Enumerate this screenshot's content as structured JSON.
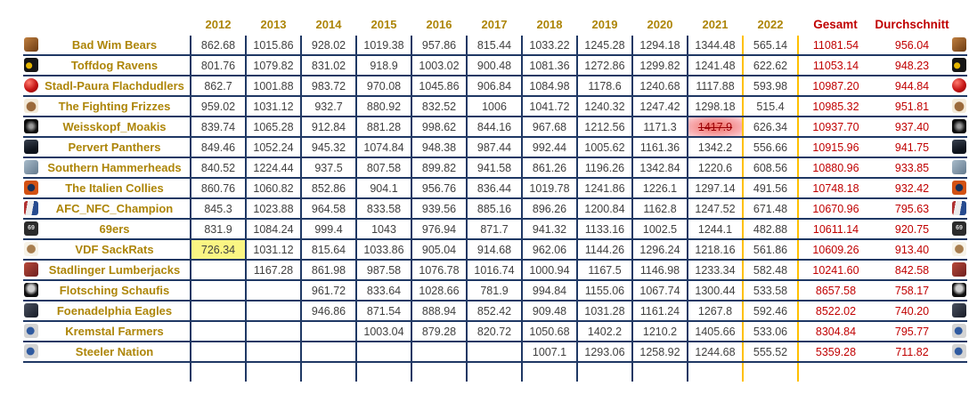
{
  "table": {
    "year_headers": [
      "2012",
      "2013",
      "2014",
      "2015",
      "2016",
      "2017",
      "2018",
      "2019",
      "2020",
      "2021",
      "2022"
    ],
    "summary_headers": {
      "total": "Gesamt",
      "average": "Durchschnitt"
    },
    "colors": {
      "header_year_text": "#AD8508",
      "team_name_text": "#AD8508",
      "value_text": "#404040",
      "summary_text": "#C00000",
      "grid_border": "#1F3864",
      "highlight_border_2022": "#FFC000",
      "min_cell_bg": "#FAF583",
      "max_cell_bg": "#EE6A60",
      "max_cell_text": "#9C0006"
    },
    "teams": [
      {
        "name": "Bad Wim Bears",
        "icon": "bear-logo-icon",
        "values": [
          "862.68",
          "1015.86",
          "928.02",
          "1019.38",
          "957.86",
          "815.44",
          "1033.22",
          "1245.28",
          "1294.18",
          "1344.48",
          "565.14"
        ],
        "gesamt": "11081.54",
        "durchschnitt": "956.04"
      },
      {
        "name": "Toffdog Ravens",
        "icon": "raven-logo-icon",
        "values": [
          "801.76",
          "1079.82",
          "831.02",
          "918.9",
          "1003.02",
          "900.48",
          "1081.36",
          "1272.86",
          "1299.82",
          "1241.48",
          "622.62"
        ],
        "gesamt": "11053.14",
        "durchschnitt": "948.23"
      },
      {
        "name": "Stadl-Paura Flachdudlers",
        "icon": "red-ball-logo-icon",
        "values": [
          "862.7",
          "1001.88",
          "983.72",
          "970.08",
          "1045.86",
          "906.84",
          "1084.98",
          "1178.6",
          "1240.68",
          "1117.88",
          "593.98"
        ],
        "gesamt": "10987.20",
        "durchschnitt": "944.84"
      },
      {
        "name": "The Fighting Frizzes",
        "icon": "frizzes-logo-icon",
        "values": [
          "959.02",
          "1031.12",
          "932.7",
          "880.92",
          "832.52",
          "1006",
          "1041.72",
          "1240.32",
          "1247.42",
          "1298.18",
          "515.4"
        ],
        "gesamt": "10985.32",
        "durchschnitt": "951.81"
      },
      {
        "name": "Weisskopf_Moakis",
        "icon": "moakis-logo-icon",
        "values": [
          "839.74",
          "1065.28",
          "912.84",
          "881.28",
          "998.62",
          "844.16",
          "967.68",
          "1212.56",
          "1171.3",
          "1417.9",
          "626.34"
        ],
        "gesamt": "10937.70",
        "durchschnitt": "937.40",
        "highlight": {
          "index": 9,
          "type": "max"
        }
      },
      {
        "name": "Pervert Panthers",
        "icon": "panthers-logo-icon",
        "values": [
          "849.46",
          "1052.24",
          "945.32",
          "1074.84",
          "948.38",
          "987.44",
          "992.44",
          "1005.62",
          "1161.36",
          "1342.2",
          "556.66"
        ],
        "gesamt": "10915.96",
        "durchschnitt": "941.75"
      },
      {
        "name": "Southern Hammerheads",
        "icon": "hammerhead-logo-icon",
        "values": [
          "840.52",
          "1224.44",
          "937.5",
          "807.58",
          "899.82",
          "941.58",
          "861.26",
          "1196.26",
          "1342.84",
          "1220.6",
          "608.56"
        ],
        "gesamt": "10880.96",
        "durchschnitt": "933.85"
      },
      {
        "name": "The Italien Collies",
        "icon": "collies-logo-icon",
        "values": [
          "860.76",
          "1060.82",
          "852.86",
          "904.1",
          "956.76",
          "836.44",
          "1019.78",
          "1241.86",
          "1226.1",
          "1297.14",
          "491.56"
        ],
        "gesamt": "10748.18",
        "durchschnitt": "932.42"
      },
      {
        "name": "AFC_NFC_Champion",
        "icon": "champion-flags-logo-icon",
        "values": [
          "845.3",
          "1023.88",
          "964.58",
          "833.58",
          "939.56",
          "885.16",
          "896.26",
          "1200.84",
          "1162.8",
          "1247.52",
          "671.48"
        ],
        "gesamt": "10670.96",
        "durchschnitt": "795.63"
      },
      {
        "name": "69ers",
        "icon": "sixtyniners-logo-icon",
        "values": [
          "831.9",
          "1084.24",
          "999.4",
          "1043",
          "976.94",
          "871.7",
          "941.32",
          "1133.16",
          "1002.5",
          "1244.1",
          "482.88"
        ],
        "gesamt": "10611.14",
        "durchschnitt": "920.75"
      },
      {
        "name": "VDF SackRats",
        "icon": "sackrats-logo-icon",
        "values": [
          "726.34",
          "1031.12",
          "815.64",
          "1033.86",
          "905.04",
          "914.68",
          "962.06",
          "1144.26",
          "1296.24",
          "1218.16",
          "561.86"
        ],
        "gesamt": "10609.26",
        "durchschnitt": "913.40",
        "highlight": {
          "index": 0,
          "type": "min"
        }
      },
      {
        "name": "Stadlinger Lumberjacks",
        "icon": "lumberjacks-logo-icon",
        "values": [
          "",
          "1167.28",
          "861.98",
          "987.58",
          "1076.78",
          "1016.74",
          "1000.94",
          "1167.5",
          "1146.98",
          "1233.34",
          "582.48"
        ],
        "gesamt": "10241.60",
        "durchschnitt": "842.58"
      },
      {
        "name": "Flotsching Schaufis",
        "icon": "schaufis-shield-logo-icon",
        "values": [
          "",
          "",
          "961.72",
          "833.64",
          "1028.66",
          "781.9",
          "994.84",
          "1155.06",
          "1067.74",
          "1300.44",
          "533.58"
        ],
        "gesamt": "8657.58",
        "durchschnitt": "758.17"
      },
      {
        "name": "Foenadelphia Eagles",
        "icon": "eagles-logo-icon",
        "values": [
          "",
          "",
          "946.86",
          "871.54",
          "888.94",
          "852.42",
          "909.48",
          "1031.28",
          "1161.24",
          "1267.8",
          "592.46"
        ],
        "gesamt": "8522.02",
        "durchschnitt": "740.20"
      },
      {
        "name": "Kremstal Farmers",
        "icon": "farmers-helmet-logo-icon",
        "values": [
          "",
          "",
          "",
          "1003.04",
          "879.28",
          "820.72",
          "1050.68",
          "1402.2",
          "1210.2",
          "1405.66",
          "533.06"
        ],
        "gesamt": "8304.84",
        "durchschnitt": "795.77"
      },
      {
        "name": "Steeler Nation",
        "icon": "steelers-helmet-logo-icon",
        "values": [
          "",
          "",
          "",
          "",
          "",
          "",
          "1007.1",
          "1293.06",
          "1258.92",
          "1244.68",
          "555.52"
        ],
        "gesamt": "5359.28",
        "durchschnitt": "711.82"
      }
    ]
  },
  "icons": {
    "bear-logo-icon": {
      "bg": "linear-gradient(135deg,#c08040,#6b3a12)",
      "round": false,
      "glyph": "",
      "fg": "#fff"
    },
    "raven-logo-icon": {
      "bg": "radial-gradient(circle at 35% 55%,#e5b500 24%,#151515 28%)",
      "round": false,
      "glyph": "",
      "fg": "#fff"
    },
    "red-ball-logo-icon": {
      "bg": "radial-gradient(circle at 35% 30%,#ff7b6e 0%,#c51414 55%,#7d0a0a 100%)",
      "round": true,
      "glyph": "",
      "fg": "#fff"
    },
    "frizzes-logo-icon": {
      "bg": "radial-gradient(circle at 50% 55%,#9b6a3c 42%,#f3ead9 48%)",
      "round": false,
      "glyph": "",
      "fg": "#fff"
    },
    "moakis-logo-icon": {
      "bg": "radial-gradient(circle at 50% 50%,#9a9a9a 18%,#0c0c0c 60%)",
      "round": false,
      "glyph": "",
      "fg": "#fff"
    },
    "panthers-logo-icon": {
      "bg": "linear-gradient(160deg,#39414f 0%,#0e131c 70%)",
      "round": false,
      "glyph": "",
      "fg": "#fff"
    },
    "hammerhead-logo-icon": {
      "bg": "linear-gradient(135deg,#a9bccb,#63798c)",
      "round": false,
      "glyph": "",
      "fg": "#fff"
    },
    "collies-logo-icon": {
      "bg": "radial-gradient(circle at 50% 50%,#173059 34%,#d35113 40%)",
      "round": false,
      "glyph": "",
      "fg": "#fff"
    },
    "champion-flags-logo-icon": {
      "bg": "linear-gradient(100deg,#b03030 22%,#ececec 22% 60%,#274b8f 60%)",
      "round": false,
      "glyph": "",
      "fg": "#fff"
    },
    "sixtyniners-logo-icon": {
      "bg": "#2b2b2b",
      "round": false,
      "glyph": "69",
      "fg": "#dddddd"
    },
    "sackrats-logo-icon": {
      "bg": "radial-gradient(circle at 50% 50%,#a87e4f 40%,#f7f3e8 46%)",
      "round": false,
      "glyph": "",
      "fg": "#fff"
    },
    "lumberjacks-logo-icon": {
      "bg": "linear-gradient(135deg,#b84a3a,#6e1f1f)",
      "round": false,
      "glyph": "",
      "fg": "#fff"
    },
    "schaufis-shield-logo-icon": {
      "bg": "radial-gradient(circle at 50% 40%,#cfcfcf 28%,#101010 60%)",
      "round": false,
      "glyph": "",
      "fg": "#fff"
    },
    "eagles-logo-icon": {
      "bg": "linear-gradient(135deg,#4a5160,#171b26)",
      "round": false,
      "glyph": "",
      "fg": "#fff"
    },
    "farmers-helmet-logo-icon": {
      "bg": "radial-gradient(circle at 45% 50%,#2f5aa0 34%,#d4d4d4 40%)",
      "round": false,
      "glyph": "",
      "fg": "#fff"
    },
    "steelers-helmet-logo-icon": {
      "bg": "radial-gradient(circle at 45% 50%,#2f5aa0 34%,#d4d4d4 40%)",
      "round": false,
      "glyph": "",
      "fg": "#fff"
    }
  }
}
